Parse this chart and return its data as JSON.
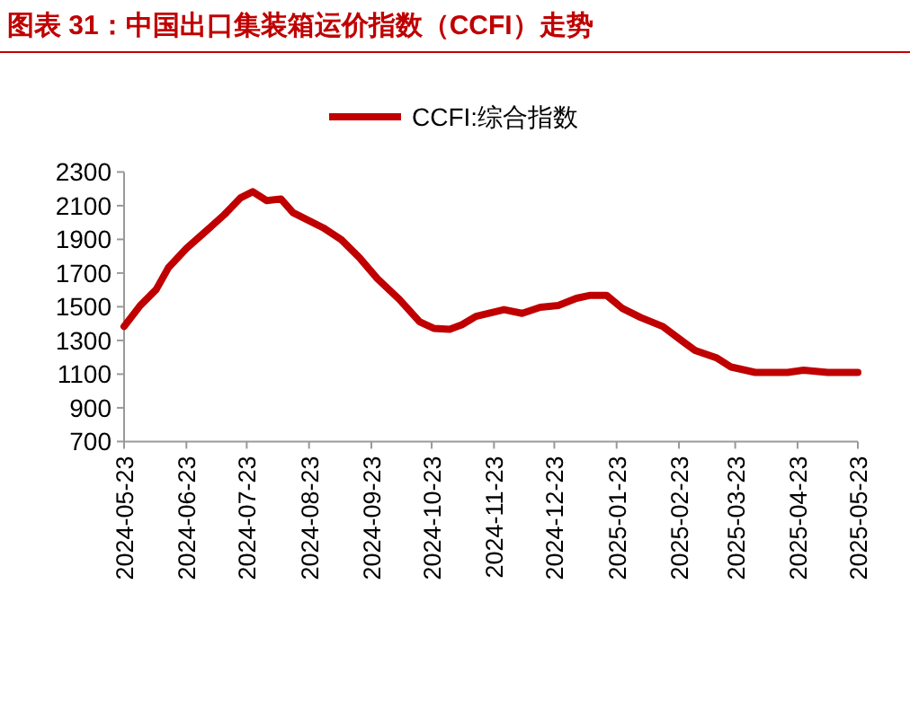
{
  "chart_data": {
    "type": "line",
    "title": "图表 31：中国出口集装箱运价指数（CCFI）走势",
    "x": [
      "2024-05-23",
      "2024-05-31",
      "2024-06-08",
      "2024-06-14",
      "2024-06-23",
      "2024-07-03",
      "2024-07-12",
      "2024-07-20",
      "2024-07-26",
      "2024-08-02",
      "2024-08-09",
      "2024-08-15",
      "2024-08-30",
      "2024-09-08",
      "2024-09-17",
      "2024-09-26",
      "2024-10-07",
      "2024-10-17",
      "2024-10-24",
      "2024-11-01",
      "2024-11-07",
      "2024-11-14",
      "2024-11-28",
      "2024-12-07",
      "2024-12-16",
      "2024-12-25",
      "2025-01-03",
      "2025-01-10",
      "2025-01-18",
      "2025-01-26",
      "2025-02-04",
      "2025-02-15",
      "2025-02-24",
      "2025-03-03",
      "2025-03-14",
      "2025-03-21",
      "2025-04-02",
      "2025-04-18",
      "2025-04-26",
      "2025-05-08",
      "2025-05-23"
    ],
    "series": [
      {
        "name": "CCFI:综合指数",
        "color": "#c00000",
        "values": [
          1383,
          1507,
          1603,
          1731,
          1846,
          1952,
          2048,
          2147,
          2183,
          2130,
          2140,
          2059,
          1969,
          1899,
          1792,
          1667,
          1543,
          1411,
          1372,
          1366,
          1393,
          1443,
          1483,
          1461,
          1497,
          1507,
          1550,
          1568,
          1568,
          1489,
          1436,
          1383,
          1302,
          1241,
          1195,
          1142,
          1110,
          1110,
          1123,
          1110,
          1110
        ]
      }
    ],
    "xlim": [
      "2024-05-23",
      "2025-05-23"
    ],
    "xticks": [
      "2024-05-23",
      "2024-06-23",
      "2024-07-23",
      "2024-08-23",
      "2024-09-23",
      "2024-10-23",
      "2024-11-23",
      "2024-12-23",
      "2025-01-23",
      "2025-02-23",
      "2025-03-23",
      "2025-04-23",
      "2025-05-23"
    ],
    "ylim": [
      700,
      2300
    ],
    "yticks": [
      700,
      900,
      1100,
      1300,
      1500,
      1700,
      1900,
      2100,
      2300
    ],
    "grid": false,
    "legend": "top",
    "marker": "none",
    "line_style": "solid"
  }
}
